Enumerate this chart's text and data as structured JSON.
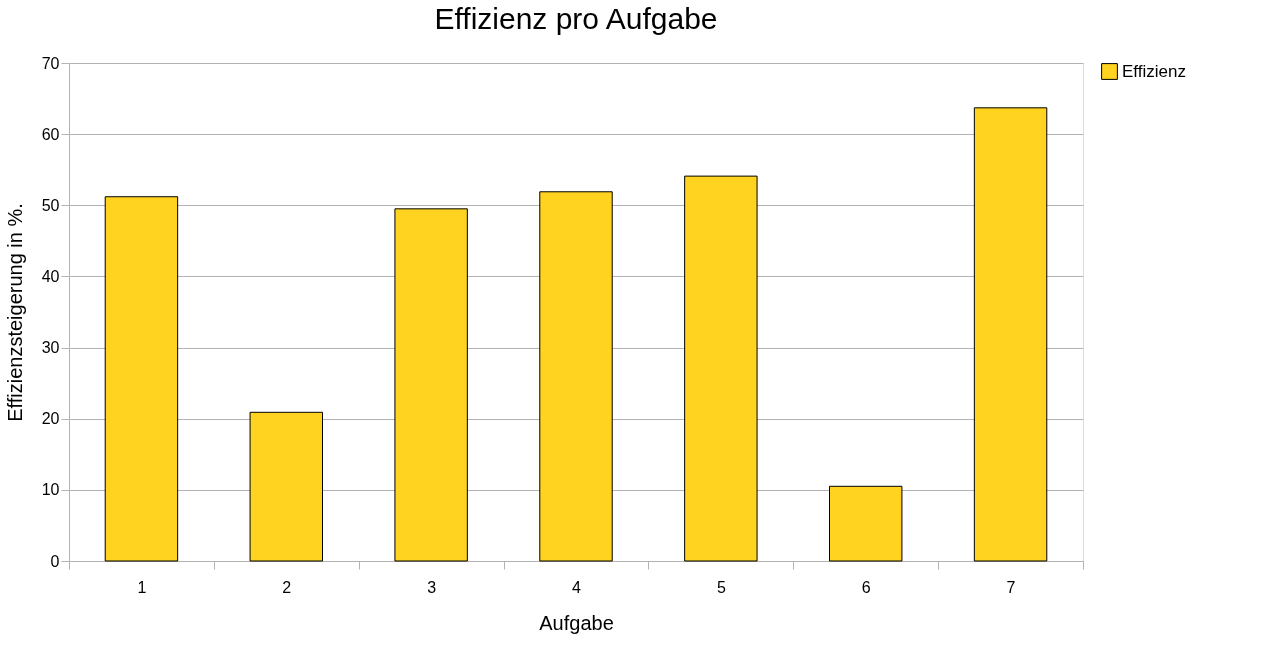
{
  "chart_data": {
    "type": "bar",
    "title": "Effizienz pro Aufgabe",
    "xlabel": "Aufgabe",
    "ylabel": "Effizienzsteigerung in %.",
    "categories": [
      "1",
      "2",
      "3",
      "4",
      "5",
      "6",
      "7"
    ],
    "series": [
      {
        "name": "Effizienz",
        "color": "#ffd320",
        "values": [
          51.2,
          20.9,
          49.5,
          51.9,
          54.1,
          10.5,
          63.7
        ]
      }
    ],
    "ylim": [
      0,
      70
    ],
    "yticks": [
      0,
      10,
      20,
      30,
      40,
      50,
      60,
      70
    ],
    "grid": "y",
    "legend": "right"
  }
}
